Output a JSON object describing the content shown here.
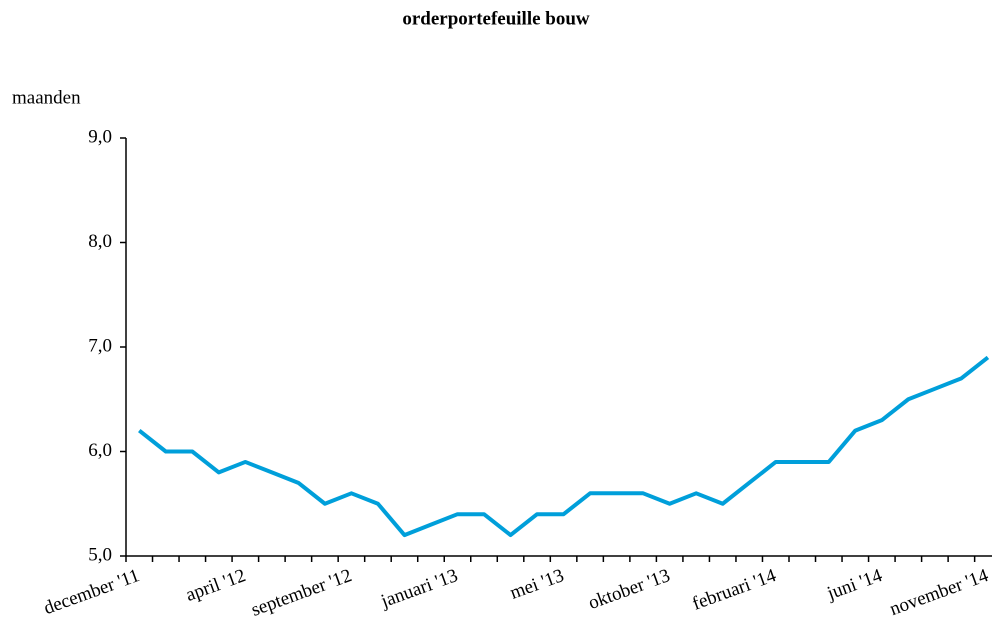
{
  "chart_data": {
    "type": "line",
    "title": "orderportefeuille bouw",
    "y_label": "maanden",
    "categories": [
      "december '11",
      null,
      null,
      null,
      "april '12",
      null,
      null,
      null,
      "september '12",
      null,
      null,
      null,
      "januari '13",
      null,
      null,
      null,
      "mei '13",
      null,
      null,
      null,
      "oktober '13",
      null,
      null,
      null,
      "februari '14",
      null,
      null,
      null,
      "juni '14",
      null,
      null,
      null,
      "november '14"
    ],
    "series": [
      {
        "name": "orderportefeuille bouw",
        "color": "#009fda",
        "values": [
          6.2,
          6.0,
          6.0,
          5.8,
          5.9,
          5.8,
          5.7,
          5.5,
          5.6,
          5.5,
          5.2,
          5.3,
          5.4,
          5.4,
          5.2,
          5.4,
          5.4,
          5.6,
          5.6,
          5.6,
          5.5,
          5.6,
          5.5,
          5.7,
          5.9,
          5.9,
          5.9,
          6.2,
          6.3,
          6.5,
          6.6,
          6.7,
          6.9
        ]
      }
    ],
    "ylim": [
      5,
      9
    ],
    "yticks": [
      {
        "value": 5,
        "label": "5,0"
      },
      {
        "value": 6,
        "label": "6,0"
      },
      {
        "value": 7,
        "label": "7,0"
      },
      {
        "value": 8,
        "label": "8,0"
      },
      {
        "value": 9,
        "label": "9,0"
      }
    ]
  }
}
